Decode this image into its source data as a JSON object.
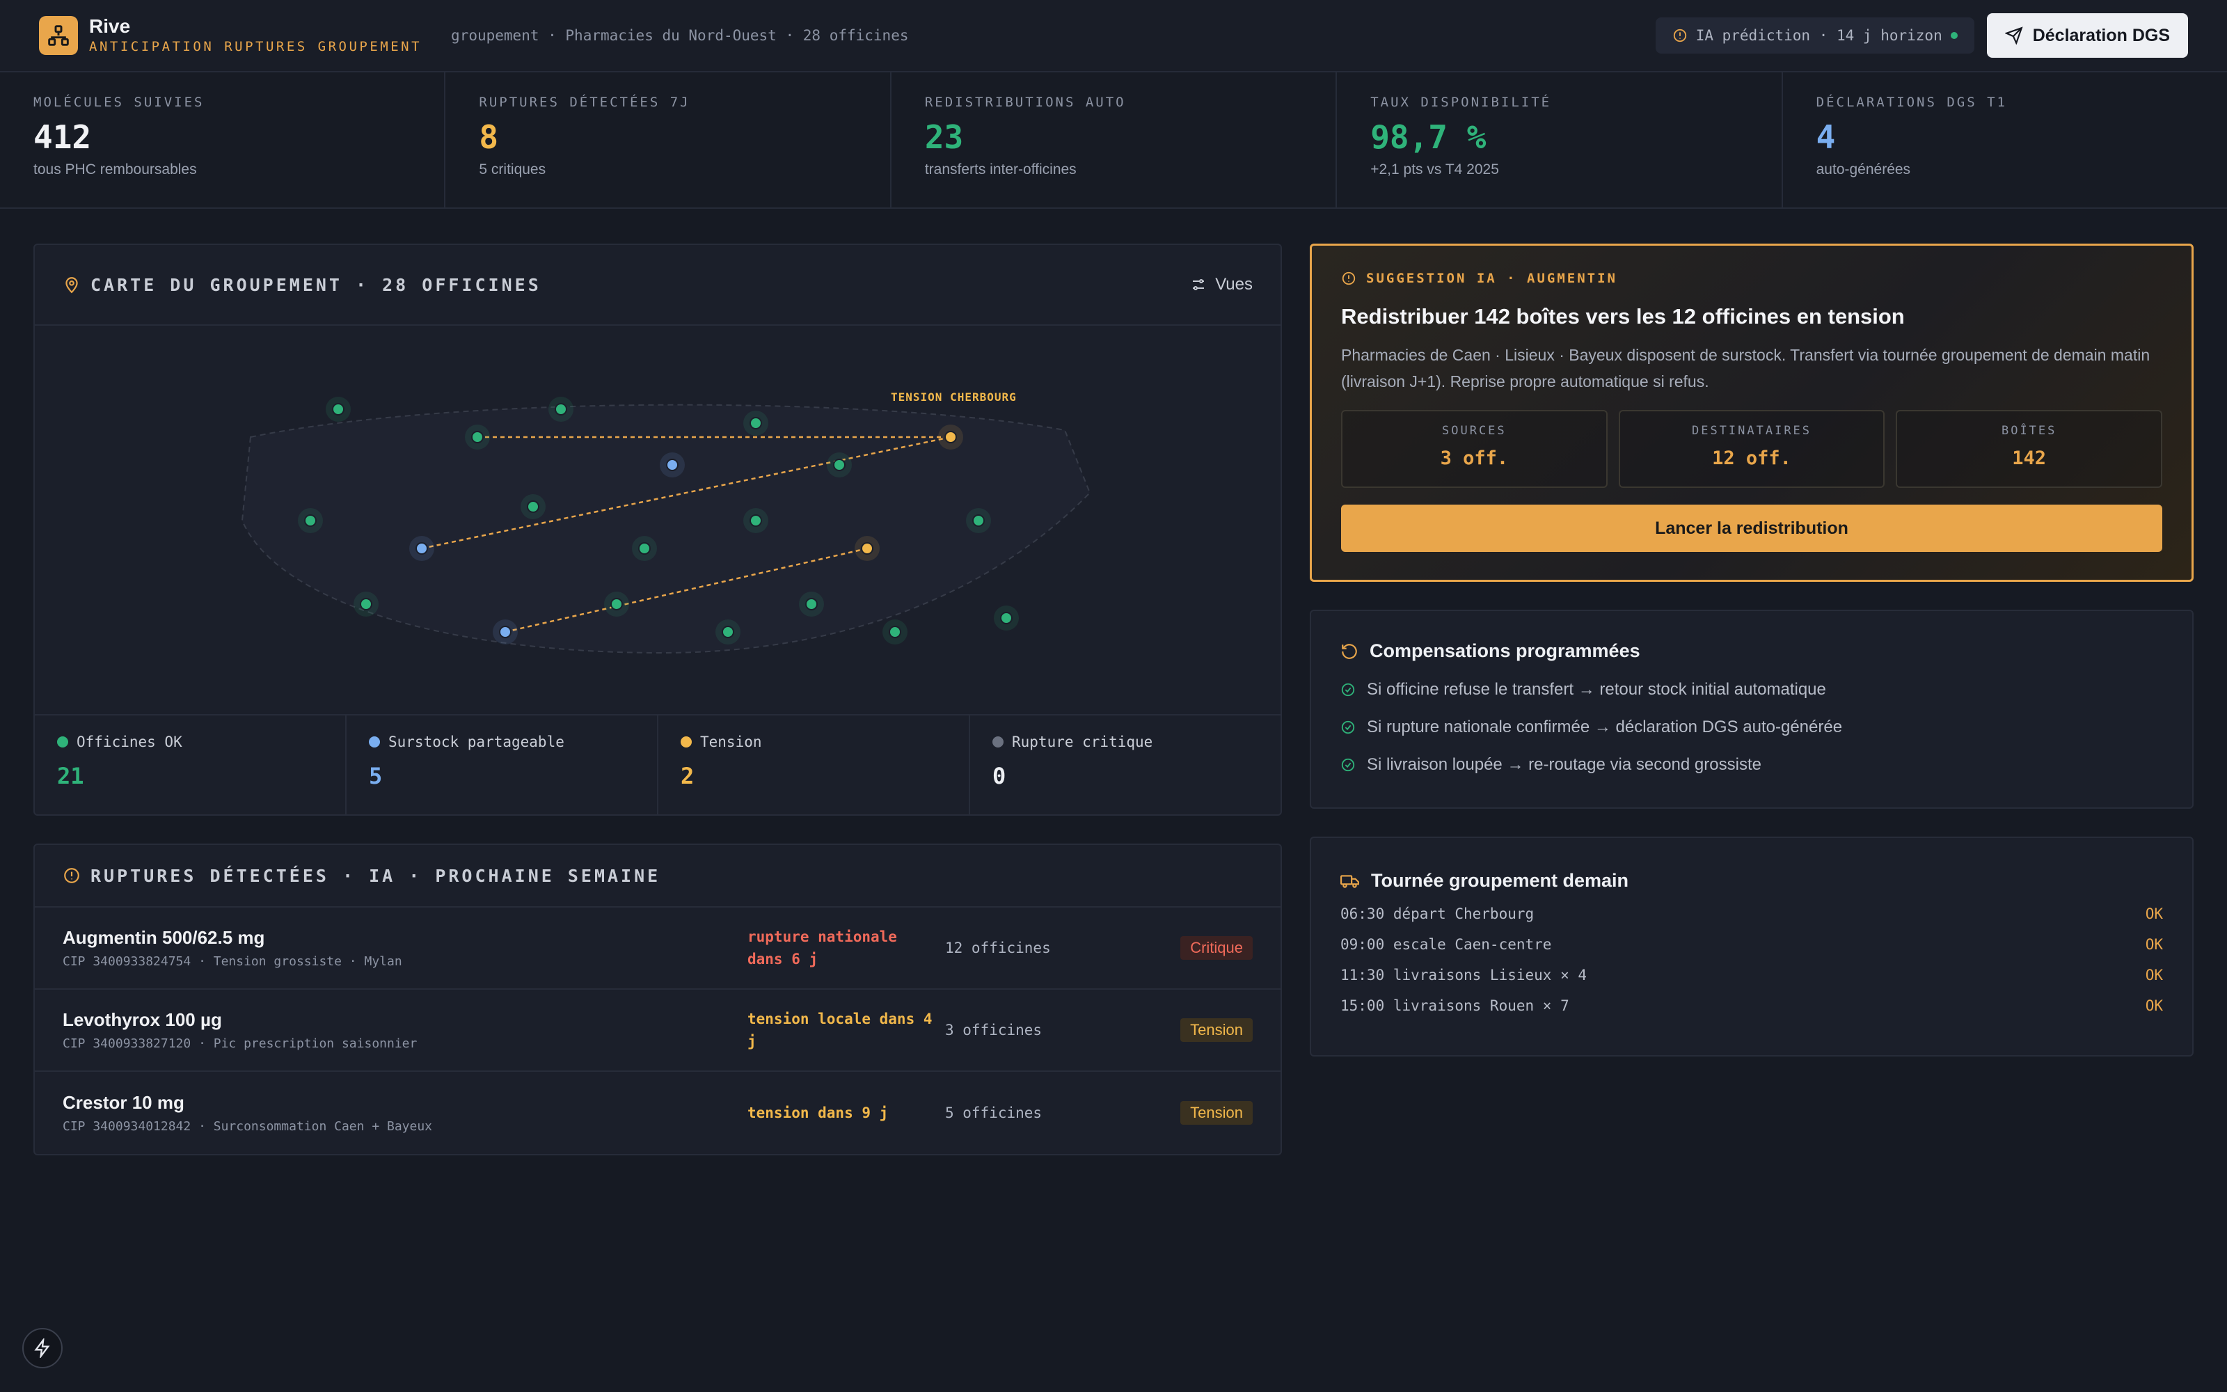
{
  "header": {
    "brand": "Rive",
    "tagline": "ANTICIPATION RUPTURES GROUPEMENT",
    "breadcrumb": "groupement · Pharmacies du Nord-Ouest · 28 officines",
    "ia_status": "IA prédiction · 14 j horizon",
    "dgs_button": "Déclaration DGS"
  },
  "kpis": [
    {
      "label": "MOLÉCULES SUIVIES",
      "value": "412",
      "sub": "tous PHC remboursables",
      "color": "#f1f2f5"
    },
    {
      "label": "RUPTURES DÉTECTÉES 7J",
      "value": "8",
      "sub": "5 critiques",
      "color": "#f2b84b"
    },
    {
      "label": "REDISTRIBUTIONS AUTO",
      "value": "23",
      "sub": "transferts inter-officines",
      "color": "#2fb37a"
    },
    {
      "label": "TAUX DISPONIBILITÉ",
      "value": "98,7 %",
      "sub": "+2,1 pts vs T4 2025",
      "color": "#2fb37a"
    },
    {
      "label": "DÉCLARATIONS DGS T1",
      "value": "4",
      "sub": "auto-générées",
      "color": "#7aaef0"
    }
  ],
  "map": {
    "title": "CARTE DU GROUPEMENT · 28 OFFICINES",
    "views_button": "Vues",
    "tension_label": "TENSION CHERBOURG",
    "legend": [
      {
        "label": "Officines OK",
        "value": "21",
        "color": "#2fb37a"
      },
      {
        "label": "Surstock partageable",
        "value": "5",
        "color": "#7aaef0"
      },
      {
        "label": "Tension",
        "value": "2",
        "color": "#f2b84b"
      },
      {
        "label": "Rupture critique",
        "value": "0",
        "color": "#6b7180"
      }
    ]
  },
  "ruptures": {
    "title": "RUPTURES DÉTECTÉES · IA · PROCHAINE SEMAINE",
    "rows": [
      {
        "name": "Augmentin 500/62.5 mg",
        "cip": "CIP 3400933824754 · Tension grossiste · Mylan",
        "state": "rupture nationale dans 6 j",
        "count": "12 officines",
        "badge": "Critique"
      },
      {
        "name": "Levothyrox 100 µg",
        "cip": "CIP 3400933827120 · Pic prescription saisonnier",
        "state": "tension locale dans 4 j",
        "count": "3 officines",
        "badge": "Tension"
      },
      {
        "name": "Crestor 10 mg",
        "cip": "CIP 3400934012842 · Surconsommation Caen + Bayeux",
        "state": "tension dans 9 j",
        "count": "5 officines",
        "badge": "Tension"
      }
    ]
  },
  "suggestion": {
    "tag": "SUGGESTION IA · AUGMENTIN",
    "title": "Redistribuer 142 boîtes vers les 12 officines en tension",
    "desc": "Pharmacies de Caen · Lisieux · Bayeux disposent de surstock. Transfert via tournée groupement de demain matin (livraison J+1). Reprise propre automatique si refus.",
    "stats": [
      {
        "label": "SOURCES",
        "value": "3 off."
      },
      {
        "label": "DESTINATAIRES",
        "value": "12 off."
      },
      {
        "label": "BOÎTES",
        "value": "142"
      }
    ],
    "button": "Lancer la redistribution"
  },
  "compensations": {
    "title": "Compensations programmées",
    "items": [
      "Si officine refuse le transfert → retour stock initial automatique",
      "Si rupture nationale confirmée → déclaration DGS auto-générée",
      "Si livraison loupée → re-routage via second grossiste"
    ]
  },
  "tournee": {
    "title": "Tournée groupement demain",
    "items": [
      {
        "text": "06:30 départ Cherbourg",
        "status": "OK"
      },
      {
        "text": "09:00 escale Caen-centre",
        "status": "OK"
      },
      {
        "text": "11:30 livraisons Lisieux × 4",
        "status": "OK"
      },
      {
        "text": "15:00 livraisons Rouen × 7",
        "status": "OK"
      }
    ]
  }
}
